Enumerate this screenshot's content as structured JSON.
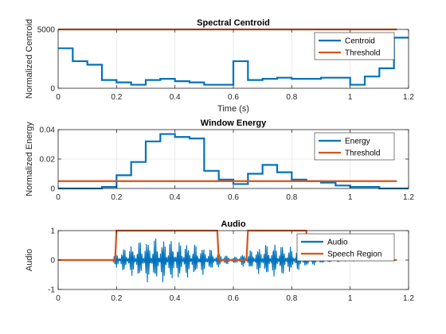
{
  "chart_data": [
    {
      "type": "line",
      "title": "Spectral Centroid",
      "xlabel": "Time (s)",
      "ylabel": "Normalized Centroid",
      "xlim": [
        0,
        1.2
      ],
      "ylim": [
        0,
        5000
      ],
      "xticks": [
        "0",
        "0.2",
        "0.4",
        "0.6",
        "0.8",
        "1",
        "1.2"
      ],
      "yticks": [
        "0",
        "5000"
      ],
      "grid": true,
      "legend_position": "top-right",
      "series": [
        {
          "name": "Centroid",
          "color": "#0072BD",
          "step": true,
          "x": [
            0,
            0.05,
            0.1,
            0.15,
            0.2,
            0.25,
            0.3,
            0.35,
            0.4,
            0.45,
            0.5,
            0.55,
            0.6,
            0.65,
            0.7,
            0.75,
            0.8,
            0.85,
            0.9,
            0.95,
            1.0,
            1.05,
            1.1,
            1.15
          ],
          "y": [
            3400,
            2300,
            2000,
            700,
            500,
            300,
            700,
            800,
            600,
            500,
            300,
            300,
            2300,
            700,
            800,
            900,
            800,
            800,
            900,
            900,
            300,
            1000,
            1700,
            4300
          ]
        },
        {
          "name": "Threshold",
          "color": "#D95319",
          "x": [
            0,
            1.16
          ],
          "y": [
            5000,
            5000
          ]
        }
      ]
    },
    {
      "type": "line",
      "title": "Window Energy",
      "xlabel": "",
      "ylabel": "Normalized Energy",
      "xlim": [
        0,
        1.2
      ],
      "ylim": [
        0,
        0.04
      ],
      "xticks": [
        "0",
        "0.2",
        "0.4",
        "0.6",
        "0.8",
        "1",
        "1.2"
      ],
      "yticks": [
        "0",
        "0.02",
        "0.04"
      ],
      "grid": true,
      "legend_position": "top-right",
      "series": [
        {
          "name": "Energy",
          "color": "#0072BD",
          "step": true,
          "x": [
            0,
            0.05,
            0.1,
            0.15,
            0.2,
            0.25,
            0.3,
            0.35,
            0.4,
            0.45,
            0.5,
            0.55,
            0.6,
            0.65,
            0.7,
            0.75,
            0.8,
            0.85,
            0.9,
            0.95,
            1.0,
            1.05,
            1.1,
            1.15
          ],
          "y": [
            0,
            0,
            0,
            0.001,
            0.009,
            0.018,
            0.032,
            0.037,
            0.035,
            0.034,
            0.012,
            0.006,
            0.003,
            0.01,
            0.016,
            0.011,
            0.006,
            0.005,
            0.004,
            0.002,
            0.001,
            0.001,
            0,
            0
          ]
        },
        {
          "name": "Threshold",
          "color": "#D95319",
          "x": [
            0,
            1.16
          ],
          "y": [
            0.005,
            0.005
          ]
        }
      ]
    },
    {
      "type": "line",
      "title": "Audio",
      "xlabel": "",
      "ylabel": "Audio",
      "xlim": [
        0,
        1.2
      ],
      "ylim": [
        -1,
        1
      ],
      "xticks": [
        "0",
        "0.2",
        "0.4",
        "0.6",
        "0.8",
        "1",
        "1.2"
      ],
      "yticks": [
        "-1",
        "0",
        "1"
      ],
      "grid": true,
      "legend_position": "top-right",
      "series": [
        {
          "name": "Audio",
          "color": "#0072BD",
          "waveform": true,
          "duration": 1.16,
          "envelope_x": [
            0,
            0.18,
            0.2,
            0.25,
            0.3,
            0.35,
            0.4,
            0.45,
            0.5,
            0.55,
            0.6,
            0.65,
            0.7,
            0.75,
            0.8,
            0.85,
            0.9,
            0.95,
            1.0,
            1.1,
            1.16
          ],
          "envelope_y": [
            0.005,
            0.01,
            0.3,
            0.55,
            0.75,
            0.8,
            0.7,
            0.6,
            0.5,
            0.25,
            0.1,
            0.3,
            0.55,
            0.6,
            0.45,
            0.25,
            0.12,
            0.05,
            0.03,
            0.01,
            0.005
          ]
        },
        {
          "name": "Speech Region",
          "color": "#D95319",
          "x": [
            0,
            0.195,
            0.2,
            0.545,
            0.55,
            0.645,
            0.65,
            0.85,
            0.855,
            1.16
          ],
          "y": [
            0,
            0,
            1,
            1,
            0,
            0,
            1,
            1,
            0,
            0
          ]
        }
      ]
    }
  ]
}
